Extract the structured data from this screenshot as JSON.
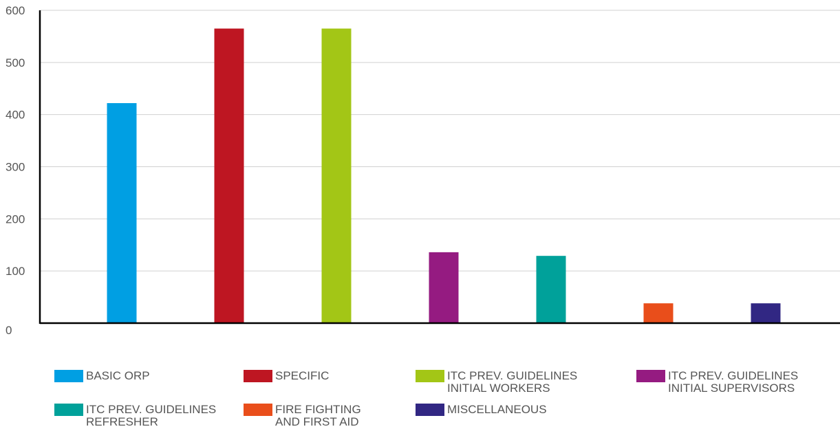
{
  "chart_data": {
    "type": "bar",
    "title": "",
    "xlabel": "",
    "ylabel": "",
    "ylim": [
      0,
      600
    ],
    "yticks": [
      0,
      100,
      200,
      300,
      400,
      500,
      600
    ],
    "grid": true,
    "legend_position": "bottom",
    "categories": [
      "BASIC ORP",
      "SPECIFIC",
      "ITC PREV. GUIDELINES\nINITIAL WORKERS",
      "ITC PREV. GUIDELINES\nINITIAL SUPERVISORS",
      "ITC PREV. GUIDELINES\nREFRESHER",
      "FIRE FIGHTING\nAND FIRST AID",
      "MISCELLANEOUS"
    ],
    "values": [
      422,
      565,
      565,
      136,
      129,
      38,
      38
    ],
    "colors": [
      "#009fe3",
      "#be1622",
      "#a3c616",
      "#951b81",
      "#00a19a",
      "#e94e1b",
      "#312783"
    ]
  }
}
